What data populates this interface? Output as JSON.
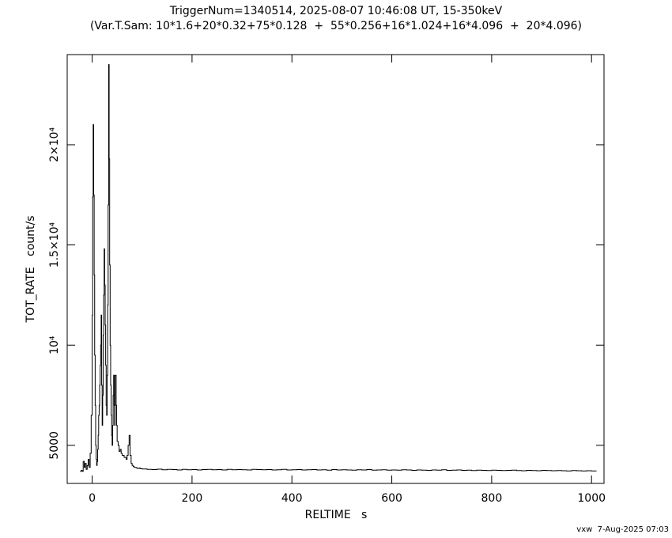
{
  "chart_data": {
    "type": "line",
    "step": true,
    "title": "TriggerNum=1340514, 2025-08-07 10:46:08 UT, 15-350keV",
    "subtitle": "(Var.T.Sam: 10*1.6+20*0.32+75*0.128  +  55*0.256+16*1.024+16*4.096  +  20*4.096)",
    "xlabel": "RELTIME   s",
    "ylabel": "TOT_RATE   count/s",
    "footer": "vxw  7-Aug-2025 07:03",
    "color": "#000000",
    "xlim": [
      -50,
      1025
    ],
    "ylim": [
      3100,
      24500
    ],
    "xticks": [
      0,
      200,
      400,
      600,
      800,
      1000
    ],
    "yticks": [
      5000,
      {
        "value": 10000,
        "label": "10⁴"
      },
      {
        "value": 15000,
        "label": "1.5×10⁴"
      },
      {
        "value": 20000,
        "label": "2×10⁴"
      }
    ],
    "x": [
      -24,
      -22,
      -20,
      -18,
      -16,
      -14,
      -12,
      -10,
      -8,
      -6,
      -4,
      -2,
      0,
      1,
      2,
      3,
      4,
      5,
      6,
      7,
      8,
      9,
      10,
      11,
      12,
      13,
      14,
      15,
      16,
      17,
      18,
      19,
      20,
      21,
      22,
      23,
      24,
      25,
      26,
      27,
      28,
      29,
      30,
      31,
      32,
      33,
      34,
      35,
      36,
      37,
      38,
      39,
      40,
      41,
      42,
      43,
      44,
      45,
      46,
      47,
      48,
      49,
      50,
      52,
      54,
      56,
      58,
      60,
      62,
      64,
      66,
      68,
      70,
      72,
      74,
      76,
      78,
      80,
      82,
      84,
      86,
      88,
      90,
      92,
      94,
      96,
      98,
      100,
      110,
      120,
      130,
      140,
      150,
      160,
      170,
      180,
      190,
      200,
      210,
      220,
      230,
      240,
      250,
      260,
      270,
      280,
      290,
      300,
      310,
      320,
      330,
      340,
      350,
      360,
      370,
      380,
      390,
      400,
      410,
      420,
      430,
      440,
      450,
      460,
      470,
      480,
      490,
      500,
      510,
      520,
      530,
      540,
      550,
      560,
      570,
      580,
      590,
      600,
      610,
      620,
      630,
      640,
      650,
      660,
      670,
      680,
      690,
      700,
      710,
      720,
      730,
      740,
      750,
      760,
      770,
      780,
      790,
      800,
      810,
      820,
      830,
      840,
      850,
      860,
      870,
      880,
      890,
      900,
      910,
      920,
      930,
      940,
      950,
      960,
      970,
      980,
      990,
      1000
    ],
    "values": [
      3700,
      3750,
      3700,
      4200,
      3900,
      4100,
      3800,
      4000,
      4300,
      3900,
      4600,
      6500,
      11500,
      17400,
      21000,
      17500,
      13500,
      9500,
      7000,
      5000,
      4300,
      4000,
      4200,
      4800,
      5500,
      6500,
      7000,
      8000,
      9000,
      10000,
      11500,
      8000,
      6000,
      7500,
      10500,
      12500,
      14800,
      13000,
      11000,
      9000,
      7000,
      6500,
      8500,
      12000,
      17000,
      24000,
      19300,
      14000,
      10000,
      8000,
      6500,
      5500,
      5000,
      6000,
      7500,
      8500,
      7000,
      6000,
      8500,
      8500,
      7000,
      6000,
      5200,
      5000,
      4700,
      4800,
      4600,
      4500,
      4500,
      4400,
      4400,
      4300,
      4500,
      5000,
      5500,
      4500,
      4100,
      4000,
      3950,
      3900,
      3900,
      3880,
      3850,
      3850,
      3870,
      3840,
      3830,
      3820,
      3800,
      3790,
      3810,
      3780,
      3800,
      3790,
      3770,
      3800,
      3780,
      3790,
      3770,
      3790,
      3800,
      3780,
      3790,
      3770,
      3800,
      3780,
      3790,
      3780,
      3770,
      3800,
      3790,
      3780,
      3790,
      3770,
      3780,
      3800,
      3770,
      3780,
      3790,
      3770,
      3780,
      3790,
      3770,
      3780,
      3760,
      3790,
      3770,
      3780,
      3770,
      3760,
      3780,
      3770,
      3790,
      3760,
      3770,
      3780,
      3760,
      3770,
      3760,
      3780,
      3770,
      3750,
      3770,
      3760,
      3750,
      3770,
      3760,
      3780,
      3750,
      3760,
      3770,
      3750,
      3760,
      3740,
      3760,
      3750,
      3740,
      3760,
      3750,
      3740,
      3750,
      3760,
      3740,
      3730,
      3750,
      3740,
      3730,
      3750,
      3740,
      3730,
      3740,
      3730,
      3720,
      3740,
      3730,
      3720,
      3730,
      3720
    ]
  }
}
